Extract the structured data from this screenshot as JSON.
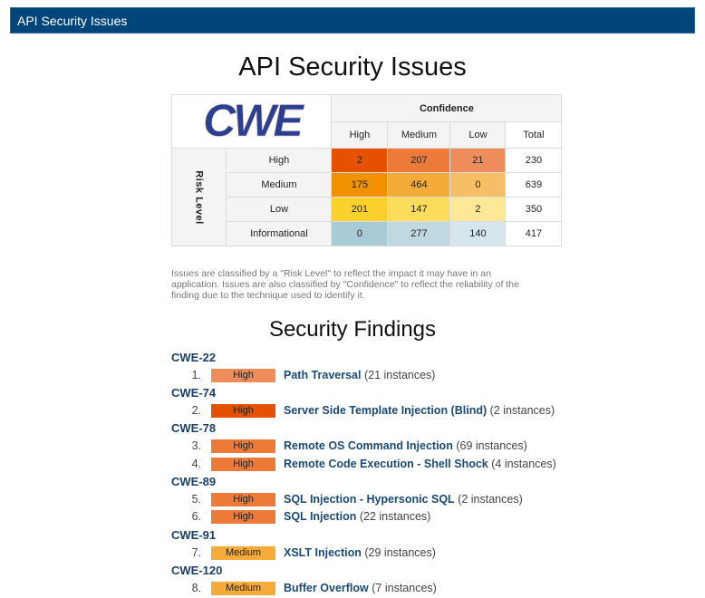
{
  "header": {
    "title": "API Security Issues",
    "background_color": "#00457a"
  },
  "page_title": "API Security Issues",
  "matrix": {
    "logo_text": "CWE",
    "confidence_label": "Confidence",
    "risk_level_label": "Risk Level",
    "columns": [
      "High",
      "Medium",
      "Low",
      "Total"
    ],
    "rows": [
      {
        "label": "High",
        "values": [
          "2",
          "207",
          "21"
        ],
        "total": "230",
        "colors": [
          "#e65100",
          "#ee7a3a",
          "#ef8c5c"
        ]
      },
      {
        "label": "Medium",
        "values": [
          "175",
          "464",
          "0"
        ],
        "total": "639",
        "colors": [
          "#f29100",
          "#f5ab3a",
          "#f7bf65"
        ]
      },
      {
        "label": "Low",
        "values": [
          "201",
          "147",
          "2"
        ],
        "total": "350",
        "colors": [
          "#fbd12e",
          "#fcdc5b",
          "#fde897"
        ]
      },
      {
        "label": "Informational",
        "values": [
          "0",
          "277",
          "140"
        ],
        "total": "417",
        "colors": [
          "#a9cbd5",
          "#c0d8e0",
          "#d6e6ee"
        ]
      }
    ]
  },
  "note": "Issues are classified by a \"Risk Level\" to reflect the impact it may have in an application. Issues are also classified by \"Confidence\" to reflect the reliability of the finding due to the technique used to identify it.",
  "findings_section": {
    "title": "Security Findings",
    "groups": [
      {
        "cwe": "CWE-22",
        "items": [
          {
            "num": "1.",
            "risk": "High",
            "badge_color": "#ef8c5c",
            "title": "Path Traversal",
            "count": "(21 instances)"
          }
        ]
      },
      {
        "cwe": "CWE-74",
        "items": [
          {
            "num": "2.",
            "risk": "High",
            "badge_color": "#e65100",
            "title": "Server Side Template Injection (Blind)",
            "count": "(2 instances)"
          }
        ]
      },
      {
        "cwe": "CWE-78",
        "items": [
          {
            "num": "3.",
            "risk": "High",
            "badge_color": "#ee7a3a",
            "title": "Remote OS Command Injection",
            "count": "(69 instances)"
          },
          {
            "num": "4.",
            "risk": "High",
            "badge_color": "#ee7a3a",
            "title": "Remote Code Execution - Shell Shock",
            "count": "(4 instances)"
          }
        ]
      },
      {
        "cwe": "CWE-89",
        "items": [
          {
            "num": "5.",
            "risk": "High",
            "badge_color": "#ee7a3a",
            "title": "SQL Injection - Hypersonic SQL",
            "count": "(2 instances)"
          },
          {
            "num": "6.",
            "risk": "High",
            "badge_color": "#ee7a3a",
            "title": "SQL Injection",
            "count": "(22 instances)"
          }
        ]
      },
      {
        "cwe": "CWE-91",
        "items": [
          {
            "num": "7.",
            "risk": "Medium",
            "badge_color": "#f5ab3a",
            "title": "XSLT Injection",
            "count": "(29 instances)"
          }
        ]
      },
      {
        "cwe": "CWE-120",
        "items": [
          {
            "num": "8.",
            "risk": "Medium",
            "badge_color": "#f5ab3a",
            "title": "Buffer Overflow",
            "count": "(7 instances)"
          }
        ]
      }
    ]
  }
}
